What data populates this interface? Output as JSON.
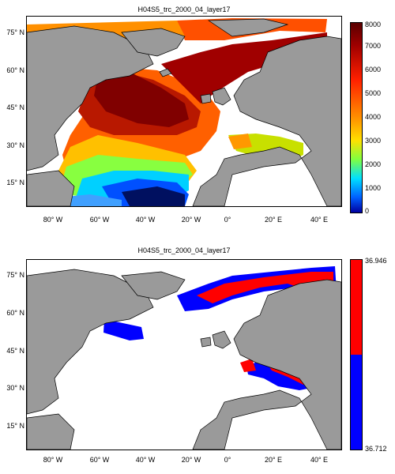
{
  "panels": [
    {
      "title": "H04S5_trc_2000_04_layer17",
      "colorbar_ticks": [
        "8000",
        "7000",
        "6000",
        "5000",
        "4000",
        "3000",
        "2000",
        "1000",
        "0"
      ]
    },
    {
      "title": "H04S5_trc_2000_04_layer17",
      "colorbar_ticks": [
        "36.946",
        "36.712"
      ]
    }
  ],
  "axes": {
    "lat_ticks": [
      "75° N",
      "60° N",
      "45° N",
      "30° N",
      "15° N"
    ],
    "lon_ticks": [
      "80° W",
      "60° W",
      "40° W",
      "20° W",
      "0°",
      "20° E",
      "40° E"
    ]
  },
  "colors": {
    "land": "#9a9a9a",
    "coast": "#000000",
    "red": "#ff0000",
    "blue": "#0000ff"
  }
}
